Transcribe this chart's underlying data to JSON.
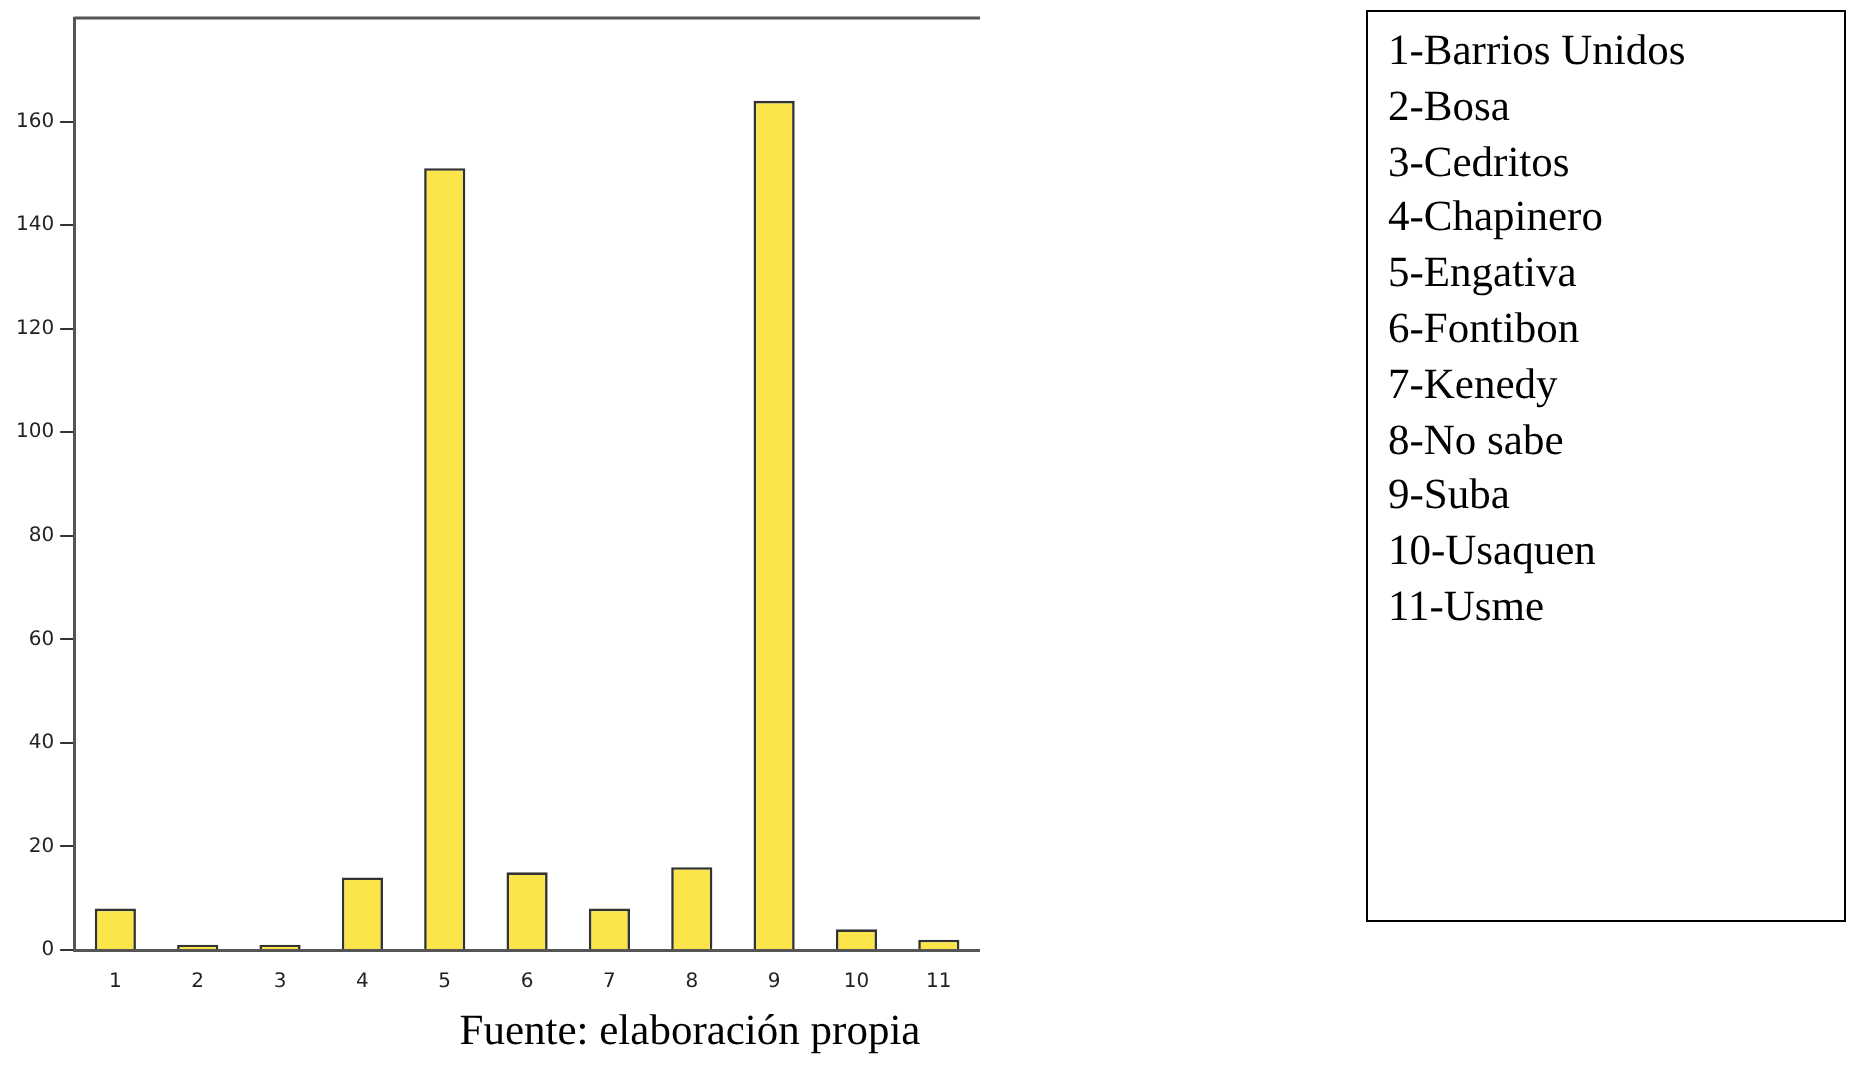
{
  "chart_data": {
    "type": "bar",
    "categories": [
      "1",
      "2",
      "3",
      "4",
      "5",
      "6",
      "7",
      "8",
      "9",
      "10",
      "11"
    ],
    "values": [
      8,
      1,
      1,
      14,
      151,
      15,
      8,
      16,
      164,
      4,
      2
    ],
    "color": "#fbe54b",
    "ylim": [
      0,
      180
    ],
    "yticks": [
      0,
      20,
      40,
      60,
      80,
      100,
      120,
      140,
      160
    ],
    "grid": false,
    "legend": false,
    "annotations": [
      "1-Barrios Unidos",
      "2-Bosa",
      "3-Cedritos",
      "4-Chapinero",
      "5-Engativa",
      "6-Fontibon",
      "7-Kenedy",
      "8-No sabe",
      "9-Suba",
      "10-Usaquen",
      "11-Usme",
      "Fuente: elaboración propia"
    ]
  }
}
